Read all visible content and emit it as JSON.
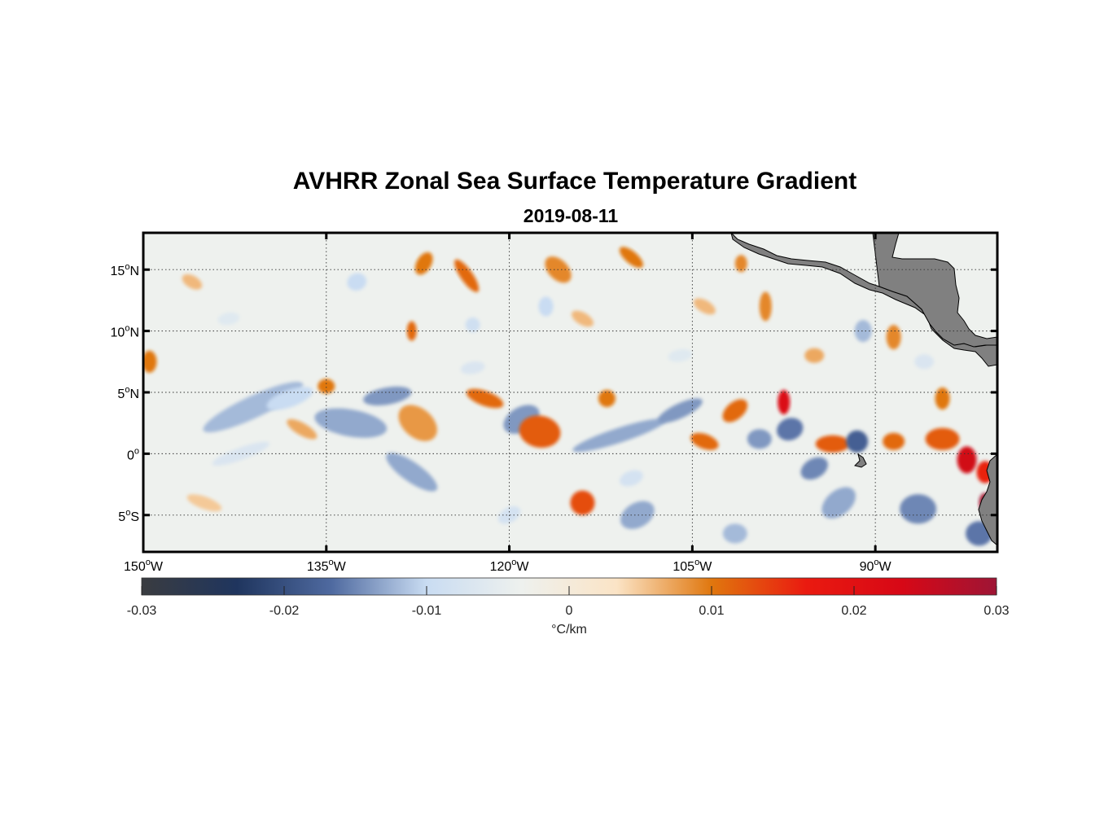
{
  "title": "AVHRR Zonal Sea Surface Temperature Gradient",
  "subtitle": "2019-08-11",
  "chart_data": {
    "type": "heatmap",
    "lon_range": [
      -150,
      -80
    ],
    "lat_range": [
      -8,
      18
    ],
    "lon_ticks": [
      {
        "value": -150,
        "deg": "150",
        "hemi": "W"
      },
      {
        "value": -135,
        "deg": "135",
        "hemi": "W"
      },
      {
        "value": -120,
        "deg": "120",
        "hemi": "W"
      },
      {
        "value": -105,
        "deg": "105",
        "hemi": "W"
      },
      {
        "value": -90,
        "deg": "90",
        "hemi": "W"
      }
    ],
    "lat_ticks": [
      {
        "value": 15,
        "deg": "15",
        "hemi": "N"
      },
      {
        "value": 10,
        "deg": "10",
        "hemi": "N"
      },
      {
        "value": 5,
        "deg": "5",
        "hemi": "N"
      },
      {
        "value": 0,
        "deg": "0",
        "hemi": ""
      },
      {
        "value": -5,
        "deg": "5",
        "hemi": "S"
      }
    ],
    "grid": true,
    "colorbar": {
      "range": [
        -0.03,
        0.03
      ],
      "ticks": [
        {
          "value": -0.03,
          "label": "-0.03"
        },
        {
          "value": -0.02,
          "label": "-0.02"
        },
        {
          "value": -0.01,
          "label": "-0.01"
        },
        {
          "value": 0,
          "label": "0"
        },
        {
          "value": 0.01,
          "label": "0.01"
        },
        {
          "value": 0.02,
          "label": "0.02"
        },
        {
          "value": 0.03,
          "label": "0.03"
        }
      ],
      "label": "°C/km",
      "colors": [
        "#3a3c40",
        "#1f355e",
        "#4f6aa0",
        "#c9dcf2",
        "#eef1ee",
        "#fbe4c6",
        "#e0770e",
        "#ea1a10",
        "#d70816",
        "#9e1535"
      ]
    },
    "land_color": "#808080",
    "features": [
      {
        "lon": -141,
        "lat": 3.8,
        "value": -0.012,
        "rx": 4.5,
        "ry": 0.9,
        "angle": 25
      },
      {
        "lon": -138,
        "lat": 4.5,
        "value": -0.01,
        "rx": 2.0,
        "ry": 0.7,
        "angle": 20
      },
      {
        "lon": -133,
        "lat": 2.5,
        "value": -0.013,
        "rx": 3.0,
        "ry": 1.1,
        "angle": -10
      },
      {
        "lon": -130,
        "lat": 4.7,
        "value": -0.014,
        "rx": 2.0,
        "ry": 0.7,
        "angle": 10
      },
      {
        "lon": -135,
        "lat": 5.5,
        "value": 0.01,
        "rx": 0.7,
        "ry": 0.6,
        "angle": 0
      },
      {
        "lon": -127.5,
        "lat": 2.5,
        "value": 0.008,
        "rx": 1.8,
        "ry": 1.2,
        "angle": -40
      },
      {
        "lon": -122,
        "lat": 4.5,
        "value": 0.011,
        "rx": 1.6,
        "ry": 0.6,
        "angle": -20
      },
      {
        "lon": -128,
        "lat": -1.5,
        "value": -0.013,
        "rx": 2.5,
        "ry": 0.8,
        "angle": -35
      },
      {
        "lon": -119,
        "lat": 2.8,
        "value": -0.014,
        "rx": 1.6,
        "ry": 1.0,
        "angle": 30
      },
      {
        "lon": -117.5,
        "lat": 1.8,
        "value": 0.012,
        "rx": 1.7,
        "ry": 1.3,
        "angle": -10
      },
      {
        "lon": -111,
        "lat": 1.5,
        "value": -0.013,
        "rx": 4.0,
        "ry": 0.6,
        "angle": 18
      },
      {
        "lon": -106,
        "lat": 3.5,
        "value": -0.014,
        "rx": 2.0,
        "ry": 0.6,
        "angle": 25
      },
      {
        "lon": -112,
        "lat": 4.5,
        "value": 0.01,
        "rx": 0.7,
        "ry": 0.7,
        "angle": 0
      },
      {
        "lon": -114,
        "lat": -4.0,
        "value": 0.013,
        "rx": 1.0,
        "ry": 1.0,
        "angle": 30
      },
      {
        "lon": -109.5,
        "lat": -5.0,
        "value": -0.013,
        "rx": 1.5,
        "ry": 1.0,
        "angle": 30
      },
      {
        "lon": -104,
        "lat": 1.0,
        "value": 0.011,
        "rx": 1.2,
        "ry": 0.6,
        "angle": -20
      },
      {
        "lon": -101.5,
        "lat": 3.5,
        "value": 0.011,
        "rx": 1.2,
        "ry": 0.7,
        "angle": 40
      },
      {
        "lon": -99.5,
        "lat": 1.2,
        "value": -0.014,
        "rx": 1.0,
        "ry": 0.8,
        "angle": 0
      },
      {
        "lon": -97.5,
        "lat": 4.2,
        "value": 0.022,
        "rx": 0.5,
        "ry": 1.0,
        "angle": 0
      },
      {
        "lon": -97,
        "lat": 2.0,
        "value": -0.016,
        "rx": 1.1,
        "ry": 0.9,
        "angle": 20
      },
      {
        "lon": -95,
        "lat": -1.2,
        "value": -0.015,
        "rx": 1.2,
        "ry": 0.8,
        "angle": 30
      },
      {
        "lon": -93.5,
        "lat": 0.8,
        "value": 0.012,
        "rx": 1.4,
        "ry": 0.7,
        "angle": 0
      },
      {
        "lon": -91.5,
        "lat": 1.0,
        "value": -0.018,
        "rx": 0.9,
        "ry": 0.9,
        "angle": 0
      },
      {
        "lon": -93,
        "lat": -4.0,
        "value": -0.013,
        "rx": 1.6,
        "ry": 1.0,
        "angle": 40
      },
      {
        "lon": -88.5,
        "lat": 1.0,
        "value": 0.011,
        "rx": 0.9,
        "ry": 0.7,
        "angle": 0
      },
      {
        "lon": -84.5,
        "lat": 1.2,
        "value": 0.012,
        "rx": 1.4,
        "ry": 0.9,
        "angle": 0
      },
      {
        "lon": -84.5,
        "lat": 4.5,
        "value": 0.01,
        "rx": 0.6,
        "ry": 0.9,
        "angle": 0
      },
      {
        "lon": -82.5,
        "lat": -0.5,
        "value": 0.024,
        "rx": 0.8,
        "ry": 1.1,
        "angle": 0
      },
      {
        "lon": -81.0,
        "lat": -1.5,
        "value": 0.016,
        "rx": 0.7,
        "ry": 0.9,
        "angle": 0
      },
      {
        "lon": -81.0,
        "lat": -4.0,
        "value": 0.029,
        "rx": 0.5,
        "ry": 0.8,
        "angle": 0
      },
      {
        "lon": -86.5,
        "lat": -4.5,
        "value": -0.015,
        "rx": 1.5,
        "ry": 1.2,
        "angle": 0
      },
      {
        "lon": -81.5,
        "lat": -6.5,
        "value": -0.016,
        "rx": 1.1,
        "ry": 1.0,
        "angle": 0
      },
      {
        "lon": -101.5,
        "lat": -6.5,
        "value": -0.012,
        "rx": 1.0,
        "ry": 0.8,
        "angle": 0
      },
      {
        "lon": -116,
        "lat": 15.0,
        "value": 0.009,
        "rx": 1.3,
        "ry": 0.8,
        "angle": -45
      },
      {
        "lon": -127,
        "lat": 15.5,
        "value": 0.01,
        "rx": 0.6,
        "ry": 1.0,
        "angle": -30
      },
      {
        "lon": -123.5,
        "lat": 14.5,
        "value": 0.011,
        "rx": 1.6,
        "ry": 0.5,
        "angle": -55
      },
      {
        "lon": -132.5,
        "lat": 14.0,
        "value": -0.01,
        "rx": 0.8,
        "ry": 0.7,
        "angle": 20
      },
      {
        "lon": -128,
        "lat": 10.0,
        "value": 0.011,
        "rx": 0.4,
        "ry": 0.8,
        "angle": 0
      },
      {
        "lon": -110,
        "lat": 16.0,
        "value": 0.01,
        "rx": 1.2,
        "ry": 0.5,
        "angle": -40
      },
      {
        "lon": -101,
        "lat": 15.5,
        "value": 0.009,
        "rx": 0.5,
        "ry": 0.7,
        "angle": 0
      },
      {
        "lon": -99,
        "lat": 12.0,
        "value": 0.009,
        "rx": 0.5,
        "ry": 1.2,
        "angle": 0
      },
      {
        "lon": -88.5,
        "lat": 9.5,
        "value": 0.009,
        "rx": 0.6,
        "ry": 1.0,
        "angle": 0
      },
      {
        "lon": -91,
        "lat": 10.0,
        "value": -0.012,
        "rx": 0.7,
        "ry": 0.9,
        "angle": 0
      },
      {
        "lon": -123,
        "lat": 10.5,
        "value": -0.009,
        "rx": 0.6,
        "ry": 0.6,
        "angle": 0
      },
      {
        "lon": -117,
        "lat": 12.0,
        "value": -0.01,
        "rx": 0.6,
        "ry": 0.8,
        "angle": 0
      },
      {
        "lon": -149.5,
        "lat": 7.5,
        "value": 0.01,
        "rx": 0.6,
        "ry": 0.9,
        "angle": 0
      },
      {
        "lon": -142,
        "lat": 0.0,
        "value": -0.007,
        "rx": 2.5,
        "ry": 0.5,
        "angle": 20
      },
      {
        "lon": -137,
        "lat": 2.0,
        "value": 0.007,
        "rx": 1.4,
        "ry": 0.5,
        "angle": -30
      },
      {
        "lon": -110,
        "lat": -2.0,
        "value": -0.008,
        "rx": 1.0,
        "ry": 0.6,
        "angle": 20
      },
      {
        "lon": -123,
        "lat": 7.0,
        "value": -0.007,
        "rx": 1.0,
        "ry": 0.5,
        "angle": 10
      },
      {
        "lon": -114,
        "lat": 11.0,
        "value": 0.006,
        "rx": 1.0,
        "ry": 0.5,
        "angle": -30
      },
      {
        "lon": -104,
        "lat": 12.0,
        "value": 0.006,
        "rx": 1.0,
        "ry": 0.5,
        "angle": -30
      },
      {
        "lon": -106,
        "lat": 8.0,
        "value": -0.006,
        "rx": 1.0,
        "ry": 0.5,
        "angle": 10
      },
      {
        "lon": -143,
        "lat": 11.0,
        "value": -0.006,
        "rx": 0.9,
        "ry": 0.5,
        "angle": 10
      },
      {
        "lon": -146,
        "lat": 14.0,
        "value": 0.006,
        "rx": 0.9,
        "ry": 0.5,
        "angle": -30
      },
      {
        "lon": -145,
        "lat": -4.0,
        "value": 0.005,
        "rx": 1.5,
        "ry": 0.5,
        "angle": -20
      },
      {
        "lon": -120,
        "lat": -5.0,
        "value": -0.008,
        "rx": 1.0,
        "ry": 0.6,
        "angle": 30
      },
      {
        "lon": -95,
        "lat": 8.0,
        "value": 0.007,
        "rx": 0.8,
        "ry": 0.6,
        "angle": 0
      },
      {
        "lon": -86,
        "lat": 7.5,
        "value": -0.007,
        "rx": 0.8,
        "ry": 0.6,
        "angle": 0
      }
    ]
  }
}
